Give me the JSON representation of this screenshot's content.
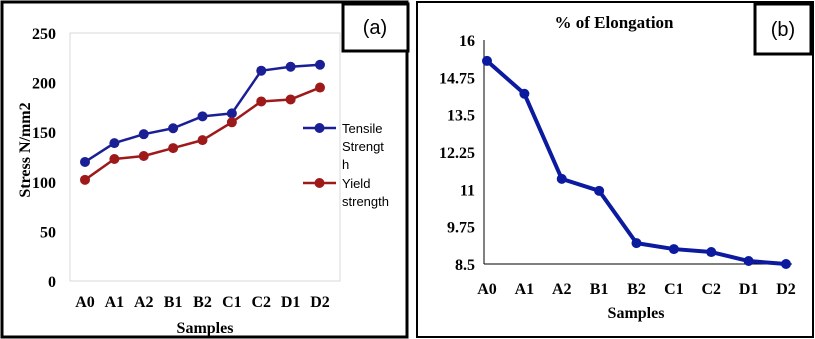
{
  "chart_data": [
    {
      "type": "line",
      "panel_label": "(a)",
      "categories": [
        "A0",
        "A1",
        "A2",
        "B1",
        "B2",
        "C1",
        "C2",
        "D1",
        "D2"
      ],
      "series": [
        {
          "name": "Tensile Strength",
          "legend_lines": [
            "Tensile",
            "Strengt",
            "h"
          ],
          "color": "#1a1f96",
          "values": [
            120,
            139,
            148,
            154,
            166,
            169,
            212,
            216,
            218
          ]
        },
        {
          "name": "Yield strength",
          "legend_lines": [
            "Yield",
            "strength"
          ],
          "color": "#9e1a1a",
          "values": [
            102,
            123,
            126,
            134,
            142,
            160,
            181,
            183,
            195
          ]
        }
      ],
      "title": "",
      "xlabel": "Samples",
      "ylabel": "Stress N/mm2",
      "ylim": [
        0,
        250
      ],
      "yticks": [
        "0",
        "50",
        "100",
        "150",
        "200",
        "250"
      ],
      "grid": false,
      "legend": "right"
    },
    {
      "type": "line",
      "panel_label": "(b)",
      "categories": [
        "A0",
        "A1",
        "A2",
        "B1",
        "B2",
        "C1",
        "C2",
        "D1",
        "D2"
      ],
      "series": [
        {
          "name": "",
          "color": "#0b1a9e",
          "values": [
            15.3,
            14.2,
            11.35,
            10.95,
            9.2,
            9.0,
            8.9,
            8.6,
            8.5
          ]
        }
      ],
      "title": "% of Elongation",
      "xlabel": "Samples",
      "ylabel": "",
      "ylim": [
        8.5,
        16
      ],
      "yticks": [
        "8.5",
        "9.75",
        "11",
        "12.25",
        "13.5",
        "14.75",
        "16"
      ],
      "grid": false,
      "legend": "none"
    }
  ]
}
